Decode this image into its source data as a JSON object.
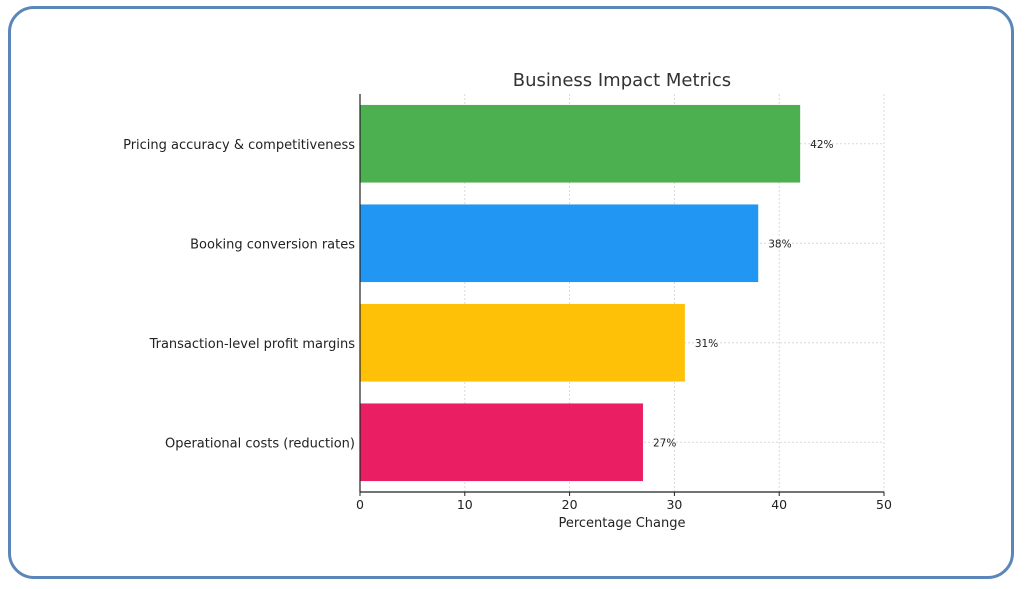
{
  "chart_data": {
    "type": "bar",
    "orientation": "horizontal",
    "title": "Business Impact Metrics",
    "xlabel": "Percentage Change",
    "ylabel": "",
    "xlim": [
      0,
      50
    ],
    "xticks": [
      0,
      10,
      20,
      30,
      40,
      50
    ],
    "grid": true,
    "categories": [
      "Pricing accuracy & competitiveness",
      "Booking conversion rates",
      "Transaction-level profit margins",
      "Operational costs (reduction)"
    ],
    "values": [
      42,
      38,
      31,
      27
    ],
    "value_labels": [
      "42%",
      "38%",
      "31%",
      "27%"
    ],
    "colors": [
      "#4caf50",
      "#2196f3",
      "#ffc107",
      "#e91e63"
    ]
  },
  "colors": {
    "frame_border": "#5b87b8",
    "grid": "#d9d9d9",
    "axis": "#222222"
  }
}
